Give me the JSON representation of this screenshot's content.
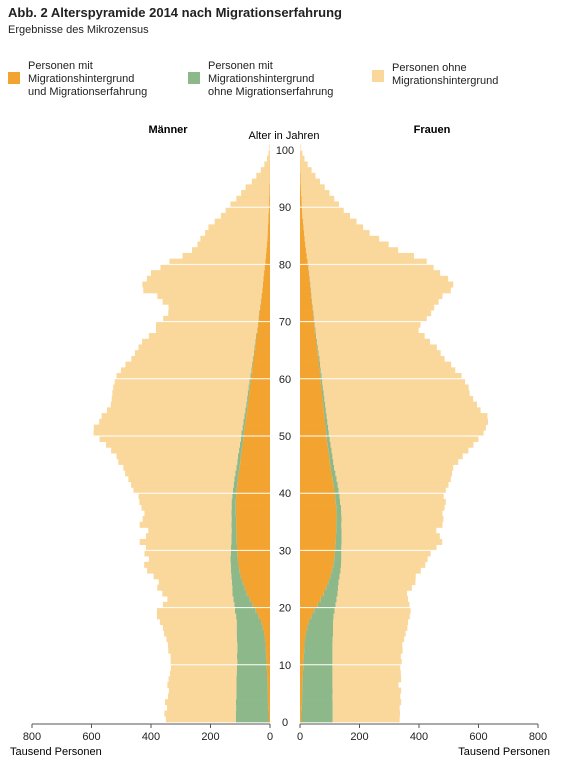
{
  "header": {
    "title": "Abb. 2 Alterspyramide 2014 nach Migrationserfahrung",
    "subtitle": "Ergebnisse des Mikrozensus"
  },
  "legend": [
    {
      "label": "Personen mit\nMigrationshintergrund\nund Migrationserfahrung",
      "color": "#f3a32f"
    },
    {
      "label": "Personen mit\nMigrationshintergrund\nohne Migrationserfahrung",
      "color": "#8db88a"
    },
    {
      "label": "Personen ohne\nMigrationshintergrund",
      "color": "#fad79a"
    }
  ],
  "chart_data": {
    "type": "bar",
    "orientation": "horizontal-pyramid",
    "title": "Abb. 2 Alterspyramide 2014 nach Migrationserfahrung",
    "subtitle": "Ergebnisse des Mikrozensus",
    "left_panel_label": "Männer",
    "right_panel_label": "Frauen",
    "center_axis_label": "Alter in Jahren",
    "xlabel_left": "Tausend Personen",
    "xlabel_right": "Tausend Personen",
    "x_ticks": [
      800,
      600,
      400,
      200,
      0
    ],
    "xlim": [
      0,
      800
    ],
    "age_ticks": [
      0,
      10,
      20,
      30,
      40,
      50,
      60,
      70,
      80,
      90,
      100
    ],
    "age_range": [
      0,
      100
    ],
    "grid": "horizontal lines every 10 years",
    "colors": {
      "mit_erfahrung": "#f3a32f",
      "ohne_erfahrung": "#8db88a",
      "ohne_hintergrund": "#fad79a"
    },
    "stack_order": [
      "mit_erfahrung",
      "ohne_erfahrung",
      "ohne_hintergrund"
    ],
    "units": "Tausend Personen",
    "note": "Age (years) in ascending order 0..100; values in thousands of persons per single year of age.",
    "series": [
      {
        "sex": "male",
        "mit_erfahrung": [
          5,
          5,
          6,
          7,
          7,
          8,
          8,
          9,
          10,
          11,
          12,
          13,
          14,
          15,
          17,
          20,
          24,
          30,
          38,
          48,
          58,
          68,
          78,
          85,
          92,
          98,
          103,
          106,
          109,
          110,
          111,
          112,
          113,
          113,
          114,
          114,
          115,
          115,
          115,
          114,
          112,
          110,
          108,
          105,
          102,
          100,
          98,
          95,
          92,
          90,
          88,
          85,
          82,
          80,
          77,
          75,
          72,
          70,
          68,
          65,
          62,
          60,
          58,
          55,
          52,
          50,
          48,
          45,
          42,
          40,
          38,
          36,
          33,
          30,
          28,
          26,
          24,
          22,
          20,
          18,
          16,
          14,
          12,
          10,
          9,
          8,
          7,
          6,
          5,
          4,
          3,
          3,
          2,
          2,
          1,
          1,
          1,
          1,
          0,
          0,
          0
        ],
        "ohne_erfahrung": [
          110,
          110,
          108,
          108,
          106,
          105,
          105,
          104,
          102,
          100,
          98,
          98,
          96,
          95,
          94,
          92,
          88,
          82,
          76,
          70,
          62,
          55,
          48,
          42,
          36,
          32,
          28,
          26,
          24,
          22,
          20,
          18,
          17,
          16,
          16,
          15,
          15,
          14,
          14,
          13,
          13,
          12,
          12,
          11,
          11,
          10,
          10,
          9,
          9,
          8,
          8,
          7,
          7,
          6,
          6,
          5,
          5,
          5,
          4,
          4,
          4,
          3,
          3,
          3,
          2,
          2,
          2,
          2,
          1,
          1,
          1,
          1,
          1,
          1,
          1,
          0,
          0,
          0,
          0,
          0,
          0,
          0,
          0,
          0,
          0,
          0,
          0,
          0,
          0,
          0,
          0,
          0,
          0,
          0,
          0,
          0,
          0,
          0,
          0,
          0,
          0
        ],
        "ohne_hintergrund": [
          235,
          240,
          232,
          238,
          230,
          227,
          232,
          228,
          224,
          222,
          224,
          223,
          232,
          233,
          237,
          244,
          248,
          258,
          266,
          262,
          240,
          222,
          236,
          252,
          246,
          261,
          282,
          291,
          274,
          290,
          286,
          308,
          287,
          280,
          308,
          299,
          292,
          303,
          310,
          315,
          334,
          345,
          356,
          371,
          380,
          400,
          408,
          430,
          450,
          475,
          497,
          500,
          485,
          480,
          465,
          455,
          455,
          455,
          455,
          453,
          450,
          438,
          425,
          408,
          400,
          390,
          380,
          360,
          340,
          342,
          320,
          305,
          307,
          330,
          350,
          400,
          405,
          392,
          380,
          350,
          322,
          280,
          250,
          234,
          225,
          210,
          200,
          180,
          160,
          145,
          130,
          110,
          95,
          80,
          60,
          45,
          30,
          18,
          10,
          5,
          2
        ]
      },
      {
        "sex": "female",
        "mit_erfahrung": [
          5,
          5,
          6,
          7,
          7,
          8,
          8,
          9,
          10,
          11,
          12,
          13,
          14,
          15,
          17,
          20,
          24,
          30,
          38,
          48,
          60,
          70,
          80,
          88,
          95,
          102,
          108,
          112,
          115,
          117,
          118,
          120,
          121,
          122,
          122,
          123,
          123,
          122,
          120,
          118,
          116,
          113,
          110,
          106,
          103,
          100,
          98,
          95,
          93,
          90,
          88,
          86,
          84,
          82,
          80,
          78,
          76,
          74,
          72,
          70,
          68,
          66,
          64,
          62,
          60,
          57,
          54,
          52,
          50,
          48,
          46,
          44,
          42,
          40,
          38,
          36,
          34,
          32,
          30,
          28,
          26,
          23,
          20,
          18,
          16,
          14,
          12,
          10,
          8,
          7,
          6,
          5,
          4,
          3,
          2,
          2,
          1,
          1,
          0,
          0,
          0
        ],
        "ohne_erfahrung": [
          105,
          105,
          104,
          103,
          102,
          102,
          101,
          100,
          99,
          98,
          97,
          96,
          95,
          94,
          93,
          91,
          87,
          81,
          75,
          68,
          60,
          53,
          46,
          40,
          35,
          31,
          28,
          26,
          24,
          22,
          21,
          20,
          19,
          18,
          17,
          17,
          16,
          16,
          15,
          15,
          14,
          14,
          13,
          13,
          12,
          12,
          11,
          11,
          10,
          10,
          9,
          9,
          8,
          8,
          7,
          7,
          6,
          6,
          5,
          5,
          5,
          4,
          4,
          4,
          3,
          3,
          3,
          2,
          2,
          2,
          2,
          2,
          1,
          1,
          1,
          1,
          1,
          1,
          1,
          1,
          0,
          0,
          0,
          0,
          0,
          0,
          0,
          0,
          0,
          0,
          0,
          0,
          0,
          0,
          0,
          0,
          0,
          0,
          0,
          0,
          0
        ],
        "ohne_hintergrund": [
          225,
          226,
          225,
          230,
          228,
          230,
          222,
          231,
          230,
          228,
          233,
          230,
          236,
          235,
          240,
          244,
          250,
          252,
          256,
          256,
          248,
          240,
          234,
          248,
          258,
          256,
          270,
          283,
          290,
          300,
          320,
          338,
          330,
          318,
          340,
          342,
          340,
          348,
          355,
          350,
          360,
          372,
          384,
          392,
          400,
          420,
          438,
          460,
          480,
          500,
          520,
          530,
          540,
          540,
          520,
          510,
          500,
          490,
          490,
          480,
          470,
          452,
          440,
          420,
          410,
          400,
          380,
          365,
          347,
          355,
          378,
          395,
          408,
          425,
          440,
          470,
          480,
          465,
          440,
          420,
          400,
          360,
          310,
          280,
          250,
          220,
          200,
          180,
          160,
          140,
          125,
          110,
          95,
          80,
          65,
          50,
          38,
          25,
          15,
          8,
          2
        ]
      }
    ]
  }
}
